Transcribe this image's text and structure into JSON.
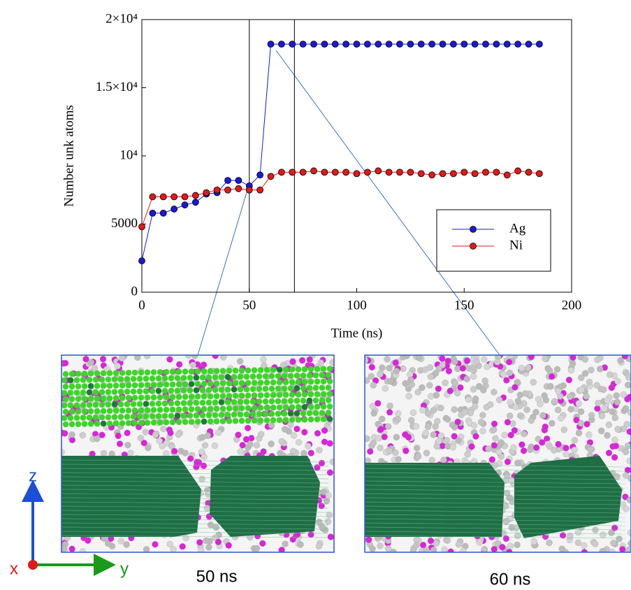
{
  "chart_data": {
    "type": "line",
    "x_label": "Time (ns)",
    "y_label": "Number unk atoms",
    "x": [
      0,
      5,
      10,
      15,
      20,
      25,
      30,
      35,
      40,
      45,
      50,
      55,
      60,
      65,
      70,
      75,
      80,
      85,
      90,
      95,
      100,
      105,
      110,
      115,
      120,
      125,
      130,
      135,
      140,
      145,
      150,
      155,
      160,
      165,
      170,
      175,
      180,
      185
    ],
    "series": [
      {
        "name": "Ag",
        "color": "#1a1ad6",
        "values": [
          2300,
          5800,
          5800,
          6100,
          6400,
          6600,
          7200,
          7300,
          8200,
          8200,
          7800,
          8600,
          18200,
          18200,
          18200,
          18200,
          18200,
          18200,
          18200,
          18200,
          18200,
          18200,
          18200,
          18200,
          18200,
          18200,
          18200,
          18200,
          18200,
          18200,
          18200,
          18200,
          18200,
          18200,
          18200,
          18200,
          18200,
          18200
        ]
      },
      {
        "name": "Ni",
        "color": "#e01a1a",
        "values": [
          4800,
          7000,
          7000,
          7000,
          7000,
          7100,
          7300,
          7500,
          7500,
          7600,
          7500,
          7500,
          8500,
          8800,
          8800,
          8800,
          8900,
          8800,
          8800,
          8800,
          8700,
          8800,
          8900,
          8800,
          8800,
          8800,
          8700,
          8600,
          8700,
          8700,
          8800,
          8700,
          8800,
          8800,
          8600,
          8900,
          8800,
          8700
        ]
      }
    ],
    "vlines": [
      50,
      71
    ],
    "xlim": [
      0,
      200
    ],
    "xticks": [
      0,
      50,
      100,
      150,
      200
    ],
    "ylim": [
      0,
      20000
    ],
    "yticks": [
      0,
      5000,
      {
        "value": 10000,
        "label": "10⁴"
      },
      {
        "value": 15000,
        "label": "1.5×10⁴"
      },
      {
        "value": 20000,
        "label": "2×10⁴"
      }
    ],
    "legend": "lower-right"
  },
  "panels": [
    {
      "caption": "50 ns"
    },
    {
      "caption": "60 ns"
    }
  ],
  "axes_triad": {
    "z": "z",
    "x": "x",
    "y": "y"
  }
}
